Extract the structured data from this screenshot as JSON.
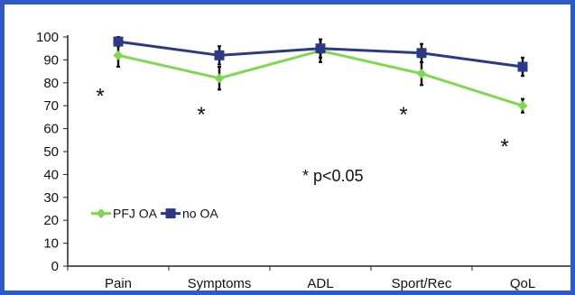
{
  "chart_data": {
    "type": "line",
    "categories": [
      "Pain",
      "Symptoms",
      "ADL",
      "Sport/Rec",
      "QoL"
    ],
    "series": [
      {
        "name": "PFJ OA",
        "values": [
          92,
          82,
          94,
          84,
          70
        ],
        "error": [
          5,
          5,
          5,
          5,
          3
        ],
        "color": "#7fd94f",
        "marker": "diamond"
      },
      {
        "name": "no OA",
        "values": [
          98,
          92,
          95,
          93,
          87
        ],
        "error": [
          2,
          4,
          4,
          4,
          4
        ],
        "color": "#2c3a86",
        "marker": "square"
      }
    ],
    "ylim": [
      0,
      100
    ],
    "yticks": [
      0,
      10,
      20,
      30,
      40,
      50,
      60,
      70,
      80,
      90,
      100
    ],
    "annotation": "* p<0.05",
    "significance_markers": [
      {
        "category": "Pain",
        "y": 75
      },
      {
        "category": "Symptoms",
        "y": 67
      },
      {
        "category": "Sport/Rec",
        "y": 67
      },
      {
        "category": "QoL",
        "y": 53
      }
    ],
    "legend": "middle-left",
    "grid": false
  }
}
